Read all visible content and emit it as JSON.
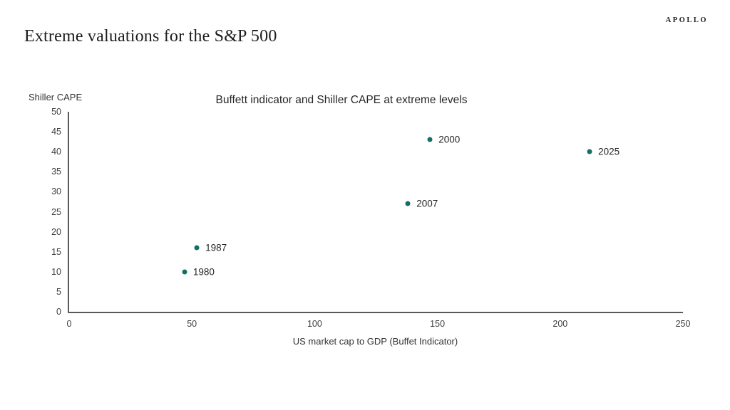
{
  "page": {
    "title": "Extreme valuations for the S&P 500",
    "logo": "APOLLO"
  },
  "chart_data": {
    "type": "scatter",
    "title": "Buffett indicator and Shiller CAPE at extreme levels",
    "xlabel": "US market cap to GDP (Buffet Indicator)",
    "ylabel": "Shiller CAPE",
    "xlim": [
      0,
      250
    ],
    "ylim": [
      0,
      50
    ],
    "xticks": [
      0,
      50,
      100,
      150,
      200,
      250
    ],
    "yticks": [
      0,
      5,
      10,
      15,
      20,
      25,
      30,
      35,
      40,
      45,
      50
    ],
    "grid": false,
    "legend": "none",
    "point_color": "#156F63",
    "axis_color": "#595959",
    "points": [
      {
        "label": "1980",
        "x": 47,
        "y": 10
      },
      {
        "label": "1987",
        "x": 52,
        "y": 16
      },
      {
        "label": "2007",
        "x": 138,
        "y": 27
      },
      {
        "label": "2000",
        "x": 147,
        "y": 43
      },
      {
        "label": "2025",
        "x": 212,
        "y": 40
      }
    ]
  }
}
